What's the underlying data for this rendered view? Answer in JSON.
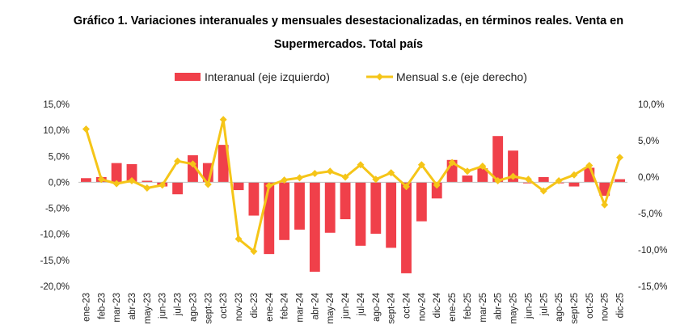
{
  "chart_data": {
    "type": "bar+line",
    "title_line1": "Gráfico 1. Variaciones interanuales y mensuales desestacionalizadas, en términos reales. Venta en",
    "title_line2": "Supermercados. Total país",
    "categories": [
      "ene-23",
      "feb-23",
      "mar-23",
      "abr-23",
      "may-23",
      "jun-23",
      "jul-23",
      "ago-23",
      "sept-23",
      "oct-23",
      "nov-23",
      "dic-23",
      "ene-24",
      "feb-24",
      "mar-24",
      "abr-24",
      "may-24",
      "jun-24",
      "jul-24",
      "ago-24",
      "sept-24",
      "oct-24",
      "nov-24",
      "dic-24",
      "ene-25",
      "feb-25",
      "mar-25",
      "abr-25",
      "may-25",
      "jun-25",
      "jul-25",
      "ago-25",
      "sept-25",
      "oct-25",
      "nov-25",
      "dic-25"
    ],
    "series": [
      {
        "name": "Interanual (eje izquierdo)",
        "type": "bar",
        "axis": "left",
        "color": "#f0404a",
        "values": [
          0.8,
          1.0,
          3.7,
          3.5,
          0.3,
          -0.8,
          -2.3,
          5.2,
          3.7,
          7.2,
          -1.5,
          -6.4,
          -13.8,
          -11.1,
          -9.1,
          -17.2,
          -9.7,
          -7.1,
          -12.2,
          -9.9,
          -12.6,
          -17.5,
          -7.5,
          -3.1,
          4.3,
          1.3,
          2.7,
          8.9,
          6.1,
          -0.2,
          1.0,
          -0.2,
          -0.8,
          2.8,
          -2.6,
          0.6
        ]
      },
      {
        "name": "Mensual s.e (eje derecho)",
        "type": "line",
        "axis": "right",
        "color": "#f5c518",
        "values": [
          6.6,
          -0.3,
          -0.9,
          -0.5,
          -1.5,
          -1.1,
          2.2,
          1.8,
          -1.0,
          7.9,
          -8.5,
          -10.2,
          -1.2,
          -0.4,
          -0.1,
          0.5,
          0.8,
          0.0,
          1.7,
          -0.3,
          0.6,
          -1.3,
          1.7,
          -1.1,
          2.0,
          0.8,
          1.5,
          -0.5,
          0.1,
          -0.3,
          -1.9,
          -0.5,
          0.3,
          1.6,
          -3.8,
          2.7
        ]
      }
    ],
    "y_left": {
      "min": -20,
      "max": 15,
      "ticks": [
        "15,0%",
        "10,0%",
        "5,0%",
        "0,0%",
        "-5,0%",
        "-10,0%",
        "-15,0%",
        "-20,0%"
      ]
    },
    "y_right": {
      "min": -15,
      "max": 10,
      "ticks": [
        "10,0%",
        "5,0%",
        "0,0%",
        "-5,0%",
        "-10,0%",
        "-15,0%"
      ]
    },
    "legend_position": "top-center"
  }
}
